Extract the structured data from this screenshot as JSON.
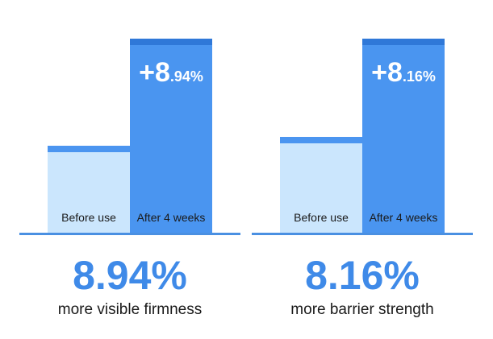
{
  "chart_data": [
    {
      "type": "bar",
      "categories": [
        "Before use",
        "After 4 weeks"
      ],
      "values": [
        100,
        108.94
      ],
      "delta": {
        "int": "+8",
        "dec": ".94%"
      },
      "headline": "8.94%",
      "caption": "more visible firmness",
      "colors": {
        "before": "#cbe6fd",
        "after": "#4a95f0",
        "accent": "#3f8ae8"
      }
    },
    {
      "type": "bar",
      "categories": [
        "Before use",
        "After 4 weeks"
      ],
      "values": [
        100,
        108.16
      ],
      "delta": {
        "int": "+8",
        "dec": ".16%"
      },
      "headline": "8.16%",
      "caption": "more barrier strength",
      "colors": {
        "before": "#cbe6fd",
        "after": "#4a95f0",
        "accent": "#3f8ae8"
      }
    }
  ]
}
